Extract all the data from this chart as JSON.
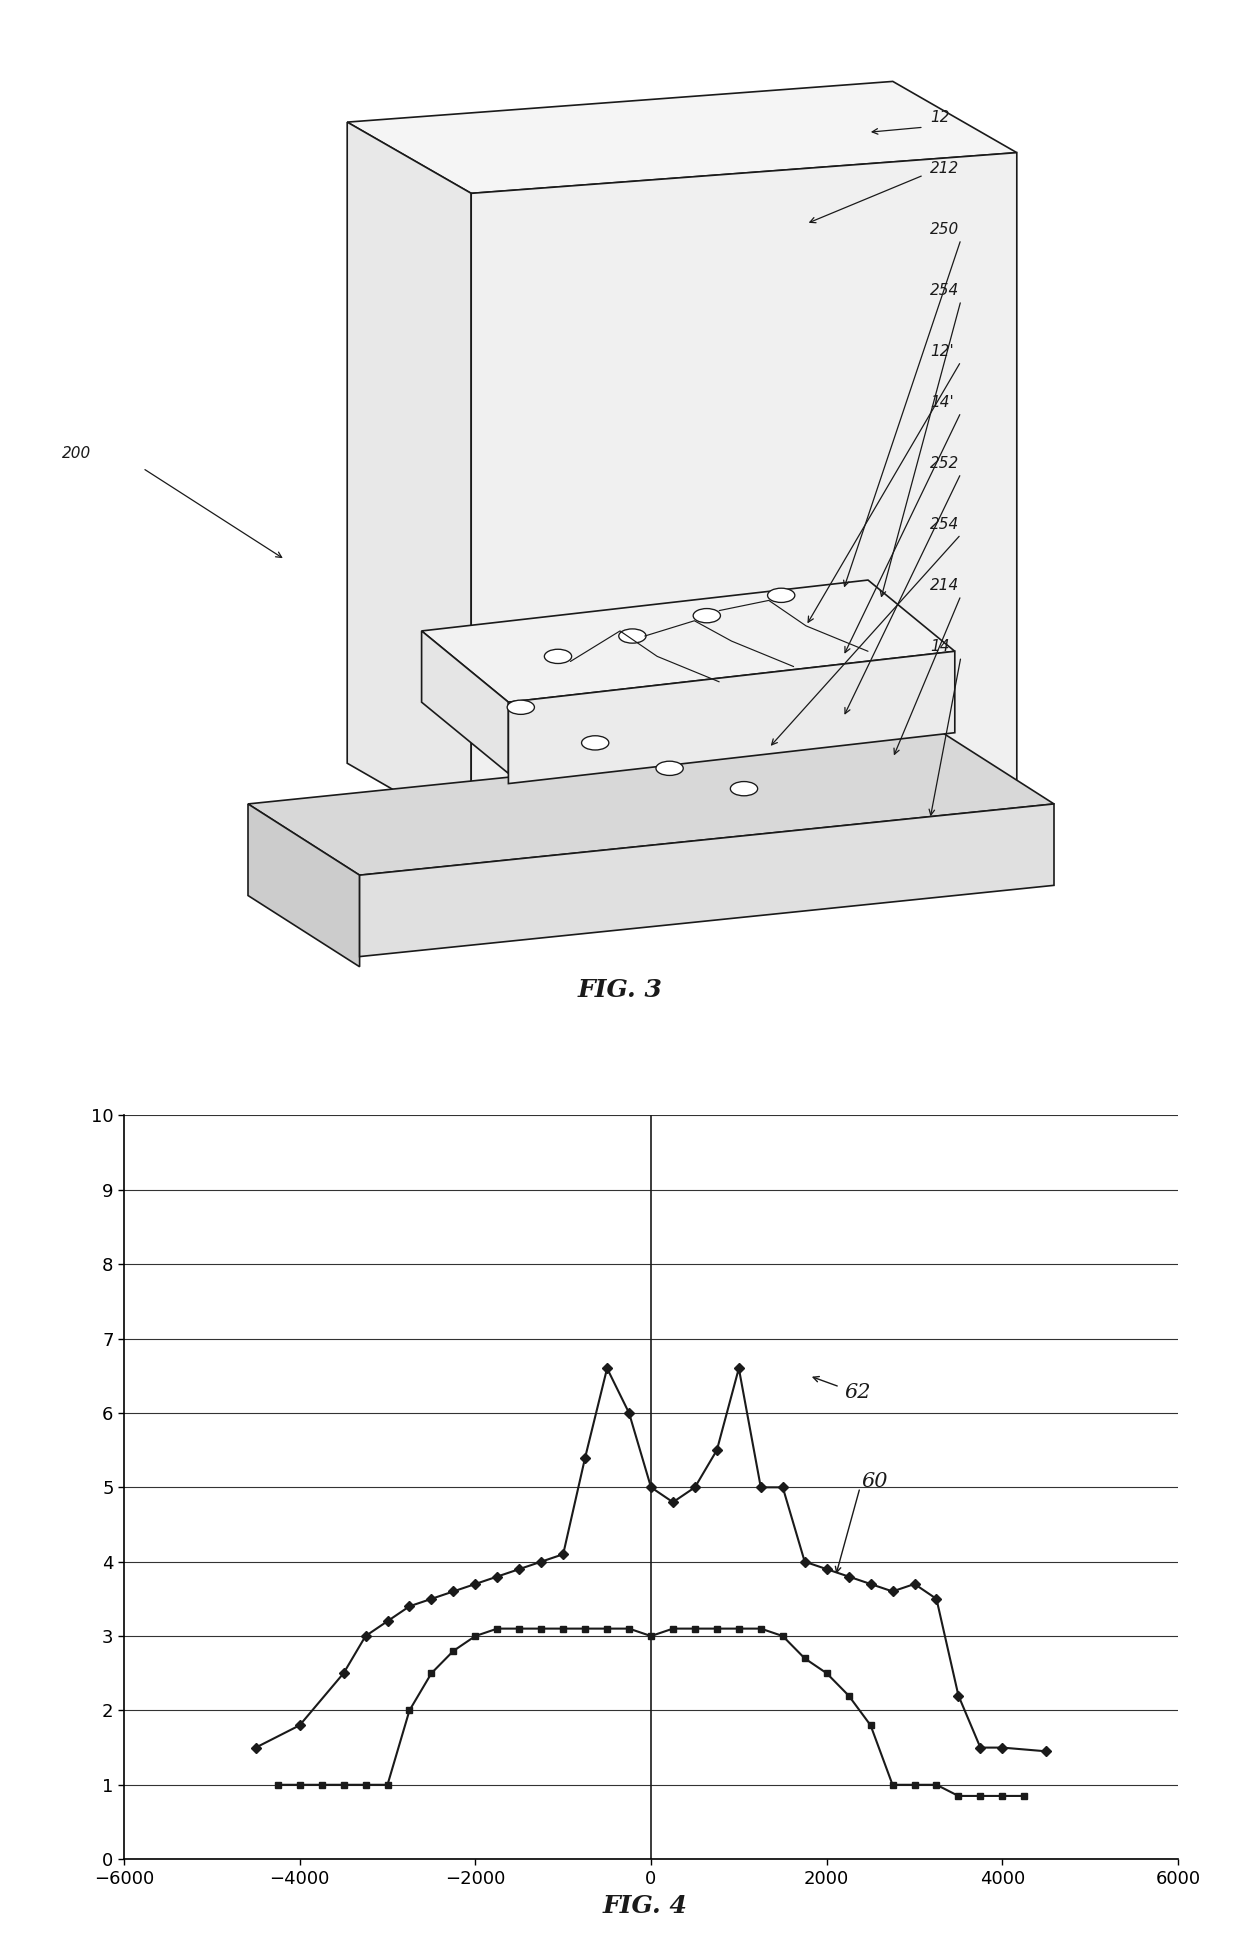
{
  "fig3_title": "FIG. 3",
  "fig4_title": "FIG. 4",
  "chart_xlim": [
    -6000,
    6000
  ],
  "chart_ylim": [
    0,
    10
  ],
  "chart_xticks": [
    -6000,
    -4000,
    -2000,
    0,
    2000,
    4000,
    6000
  ],
  "chart_yticks": [
    0,
    1,
    2,
    3,
    4,
    5,
    6,
    7,
    8,
    9,
    10
  ],
  "series62_label": "62",
  "series60_label": "60",
  "series62_x": [
    -4500,
    -4000,
    -3500,
    -3250,
    -3000,
    -2750,
    -2500,
    -2250,
    -2000,
    -1750,
    -1500,
    -1250,
    -1000,
    -750,
    -500,
    -250,
    0,
    250,
    500,
    750,
    1000,
    1250,
    1500,
    1750,
    2000,
    2250,
    2500,
    2750,
    3000,
    3250,
    3500,
    3750,
    4000,
    4500
  ],
  "series62_y": [
    1.5,
    1.8,
    2.5,
    3.0,
    3.2,
    3.4,
    3.5,
    3.6,
    3.7,
    3.8,
    3.9,
    4.0,
    4.1,
    5.4,
    6.6,
    6.0,
    5.0,
    4.8,
    5.0,
    5.5,
    6.6,
    5.0,
    5.0,
    4.0,
    3.9,
    3.8,
    3.7,
    3.6,
    3.7,
    3.5,
    2.2,
    1.5,
    1.5,
    1.45
  ],
  "series60_x": [
    -4250,
    -4000,
    -3750,
    -3500,
    -3250,
    -3000,
    -2750,
    -2500,
    -2250,
    -2000,
    -1750,
    -1500,
    -1250,
    -1000,
    -750,
    -500,
    -250,
    0,
    250,
    500,
    750,
    1000,
    1250,
    1500,
    1750,
    2000,
    2250,
    2500,
    2750,
    3000,
    3250,
    3500,
    3750,
    4000,
    4250
  ],
  "series60_y": [
    1.0,
    1.0,
    1.0,
    1.0,
    1.0,
    1.0,
    2.0,
    2.5,
    2.8,
    3.0,
    3.1,
    3.1,
    3.1,
    3.1,
    3.1,
    3.1,
    3.1,
    3.0,
    3.1,
    3.1,
    3.1,
    3.1,
    3.1,
    3.0,
    2.7,
    2.5,
    2.2,
    1.8,
    1.0,
    1.0,
    1.0,
    0.85,
    0.85,
    0.85,
    0.85
  ],
  "background_color": "#ffffff",
  "line_color": "#1a1a1a",
  "marker_diamond": "D",
  "marker_square": "s"
}
